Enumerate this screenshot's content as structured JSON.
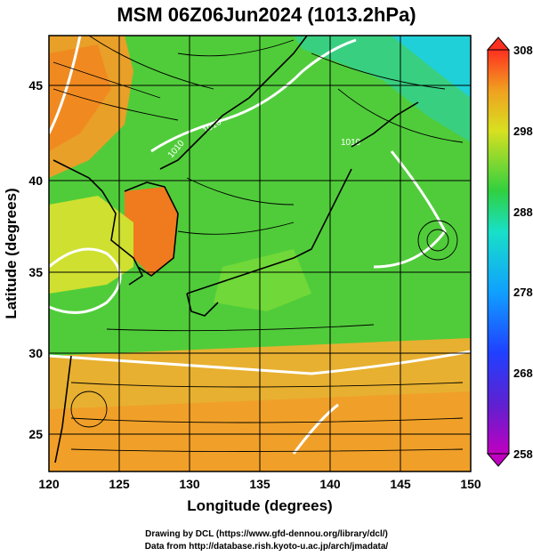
{
  "title": "MSM 06Z06Jun2024 (1013.2hPa)",
  "x_axis": {
    "label": "Longitude (degrees)",
    "range": [
      120,
      150
    ],
    "ticks": [
      "120",
      "125",
      "130",
      "135",
      "140",
      "145",
      "150"
    ]
  },
  "y_axis": {
    "label": "Latitude  (degrees)",
    "range": [
      22.4,
      47.6
    ],
    "ticks": [
      "25",
      "30",
      "35",
      "40",
      "45"
    ]
  },
  "colorbar": {
    "range": [
      258,
      308
    ],
    "labels": [
      "308",
      "298",
      "288",
      "278",
      "268",
      "258"
    ]
  },
  "contour_labels": [
    "1010",
    "1010",
    "1010"
  ],
  "credits": {
    "line1": "Drawing by DCL (https://www.gfd-dennou.org/library/dcl/)",
    "line2": "Data from http://database.rish.kyoto-u.ac.jp/arch/jmadata/"
  },
  "colors": {
    "warm_south": "#f0a030",
    "mid_green": "#4ccc35",
    "cool_northeast": "#1fd0d8",
    "land_orange": "#f07a1e",
    "isobar": "#ffffff",
    "streamline": "#000000"
  }
}
